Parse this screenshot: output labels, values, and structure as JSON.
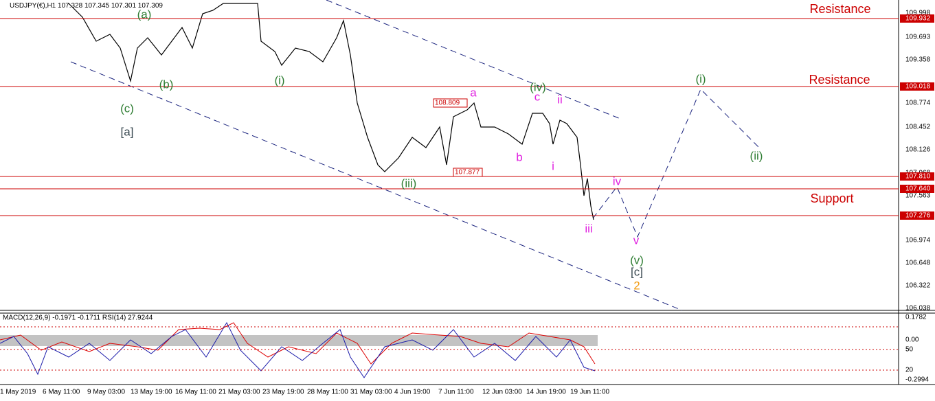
{
  "header": {
    "symbol": "USDJPY(€),H1",
    "quote": "107.328 107.345 107.301 107.309"
  },
  "indicator_header": "MACD(12,26,9) -0.1971 -0.1711 RSI(14) 27.9244",
  "price_axis": [
    "109.998",
    "109.693",
    "109.358",
    "108.774",
    "108.452",
    "108.126",
    "107.968",
    "107.563",
    "106.974",
    "106.648",
    "106.322",
    "106.038"
  ],
  "price_levels": [
    "109.932",
    "109.018",
    "107.810",
    "107.640",
    "107.276"
  ],
  "indicator_axis": [
    "0.1782",
    "0.00",
    "50",
    "20",
    "-0.2994"
  ],
  "dates": [
    "1 May 2019",
    "6 May 11:00",
    "9 May 03:00",
    "13 May 19:00",
    "16 May 11:00",
    "21 May 03:00",
    "23 May 19:00",
    "28 May 11:00",
    "31 May 03:00",
    "4 Jun 19:00",
    "7 Jun 11:00",
    "12 Jun 03:00",
    "14 Jun 19:00",
    "19 Jun 11:00"
  ],
  "zones": [
    "Resistance",
    "Resistance",
    "Support"
  ],
  "price_tags": [
    "108.809",
    "107.877"
  ],
  "waves": [
    "(a)",
    "(b)",
    "(c)",
    "[a]",
    "(i)",
    "(iii)",
    "(iv)",
    "(i)",
    "(ii)",
    "(v)",
    "[c]",
    "2",
    "a",
    "c",
    "ii",
    "b",
    "i",
    "iv",
    "iii",
    "v"
  ]
}
